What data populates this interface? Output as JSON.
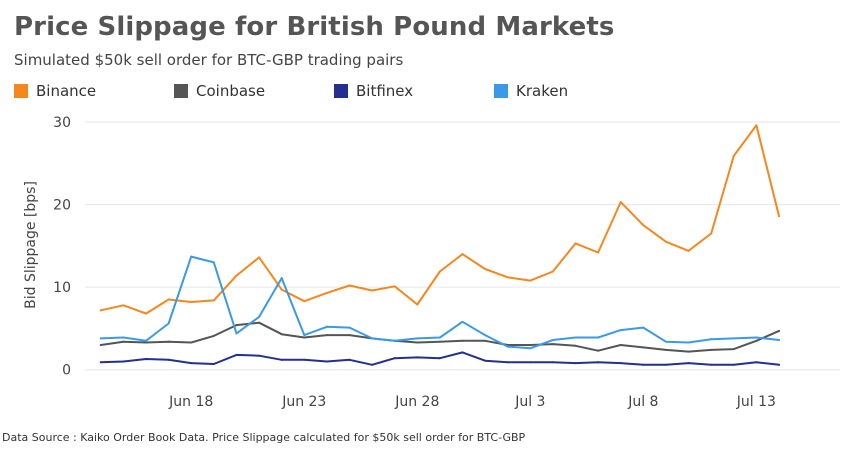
{
  "title": "Price Slippage for British Pound Markets",
  "subtitle": "Simulated $50k sell order for BTC-GBP trading pairs",
  "source": "Data Source : Kaiko Order Book Data. Price Slippage calculated for $50k sell order for BTC-GBP",
  "colors": {
    "Binance": "#f5871f",
    "Coinbase": "#555555",
    "Bitfinex": "#252f8f",
    "Kraken": "#3b9ae8",
    "grid": "#e6e6e6"
  },
  "chart_data": {
    "type": "line",
    "title": "Price Slippage for British Pound Markets",
    "subtitle": "Simulated $50k sell order for BTC-GBP trading pairs",
    "xlabel": "",
    "ylabel": "Bid Slippage [bps]",
    "x_start": "Jun 14",
    "x_ticks": [
      {
        "day": 4,
        "label": "Jun 18"
      },
      {
        "day": 9,
        "label": "Jun 23"
      },
      {
        "day": 14,
        "label": "Jun 28"
      },
      {
        "day": 19,
        "label": "Jul 3"
      },
      {
        "day": 24,
        "label": "Jul 8"
      },
      {
        "day": 29,
        "label": "Jul 13"
      }
    ],
    "xlim": [
      -0.7,
      32.7
    ],
    "ylim": [
      -1,
      30
    ],
    "y_ticks": [
      0,
      10,
      20,
      30
    ],
    "grid": true,
    "legend_position": "top-left",
    "series": [
      {
        "name": "Binance",
        "color_key": "Binance",
        "values": [
          7.2,
          7.8,
          6.8,
          8.5,
          8.2,
          8.4,
          11.4,
          13.6,
          9.7,
          8.3,
          9.3,
          10.2,
          9.6,
          10.1,
          7.9,
          11.9,
          14.0,
          12.2,
          11.2,
          10.8,
          11.9,
          15.3,
          14.2,
          20.3,
          17.5,
          15.5,
          14.4,
          16.5,
          25.9,
          29.6,
          18.6
        ]
      },
      {
        "name": "Coinbase",
        "color_key": "Coinbase",
        "values": [
          3.0,
          3.4,
          3.3,
          3.4,
          3.3,
          4.1,
          5.4,
          5.7,
          4.3,
          3.9,
          4.2,
          4.2,
          3.8,
          3.5,
          3.3,
          3.4,
          3.5,
          3.5,
          3.0,
          3.0,
          3.1,
          2.9,
          2.3,
          3.0,
          2.7,
          2.4,
          2.2,
          2.4,
          2.5,
          3.5,
          4.7
        ]
      },
      {
        "name": "Bitfinex",
        "color_key": "Bitfinex",
        "values": [
          0.9,
          1.0,
          1.3,
          1.2,
          0.8,
          0.7,
          1.8,
          1.7,
          1.2,
          1.2,
          1.0,
          1.2,
          0.6,
          1.4,
          1.5,
          1.4,
          2.1,
          1.1,
          0.9,
          0.9,
          0.9,
          0.8,
          0.9,
          0.8,
          0.6,
          0.6,
          0.8,
          0.6,
          0.6,
          0.9,
          0.6
        ]
      },
      {
        "name": "Kraken",
        "color_key": "Kraken",
        "values": [
          3.8,
          3.9,
          3.5,
          5.6,
          13.7,
          13.0,
          4.4,
          6.4,
          11.1,
          4.2,
          5.2,
          5.1,
          3.8,
          3.5,
          3.8,
          3.9,
          5.8,
          4.2,
          2.8,
          2.6,
          3.6,
          3.9,
          3.9,
          4.8,
          5.1,
          3.4,
          3.3,
          3.7,
          3.8,
          3.9,
          3.6
        ]
      }
    ]
  }
}
